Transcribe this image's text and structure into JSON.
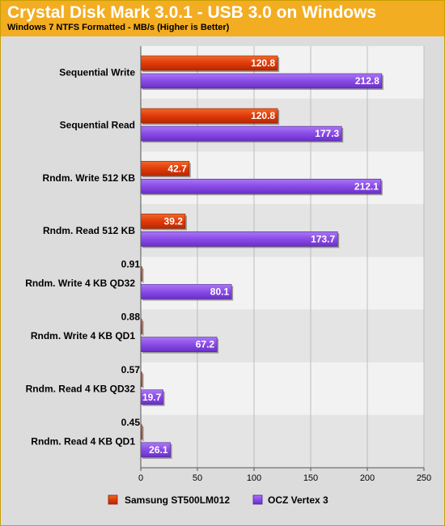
{
  "chart_data": {
    "type": "bar",
    "orientation": "horizontal",
    "title": "Crystal Disk Mark 3.0.1 - USB 3.0 on Windows",
    "subtitle": "Windows 7 NTFS Formatted - MB/s (Higher is Better)",
    "categories": [
      "Sequential Write",
      "Sequential Read",
      "Rndm. Write 512 KB",
      "Rndm. Read 512 KB",
      "Rndm. Write 4 KB QD32",
      "Rndm. Write 4 KB QD1",
      "Rndm. Read 4 KB QD32",
      "Rndm. Read 4 KB QD1"
    ],
    "series": [
      {
        "name": "Samsung ST500LM012",
        "color": "#e03a0a",
        "values": [
          120.8,
          120.8,
          42.7,
          39.2,
          0.91,
          0.88,
          0.57,
          0.45
        ]
      },
      {
        "name": "OCZ Vertex 3",
        "color": "#8a4be6",
        "values": [
          212.8,
          177.3,
          212.1,
          173.7,
          80.1,
          67.2,
          19.7,
          26.1
        ]
      }
    ],
    "xlim": [
      0,
      250
    ],
    "xticks": [
      0,
      50,
      100,
      150,
      200,
      250
    ],
    "grid": true,
    "legend": "bottom"
  }
}
